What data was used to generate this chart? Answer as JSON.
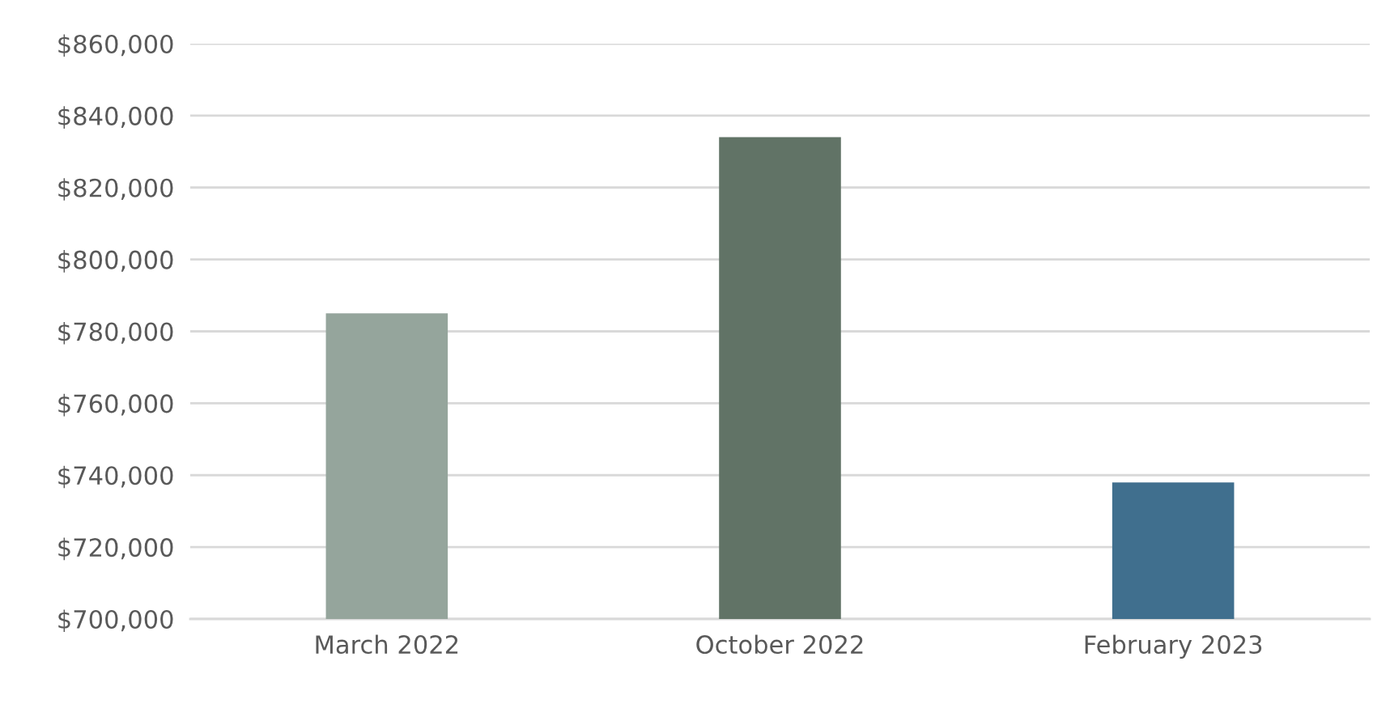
{
  "chart_data": {
    "type": "bar",
    "categories": [
      "March 2022",
      "October 2022",
      "February 2023"
    ],
    "values": [
      785000,
      834000,
      738000
    ],
    "colors": [
      "#95a59c",
      "#617366",
      "#406f8e"
    ],
    "ylim": [
      700000,
      860000
    ],
    "yticks": [
      {
        "value": 700000,
        "label": "$700,000"
      },
      {
        "value": 720000,
        "label": "$720,000"
      },
      {
        "value": 740000,
        "label": "$740,000"
      },
      {
        "value": 760000,
        "label": "$760,000"
      },
      {
        "value": 780000,
        "label": "$780,000"
      },
      {
        "value": 800000,
        "label": "$800,000"
      },
      {
        "value": 820000,
        "label": "$820,000"
      },
      {
        "value": 840000,
        "label": "$840,000"
      },
      {
        "value": 860000,
        "label": "$860,000"
      }
    ],
    "grid": "y"
  }
}
